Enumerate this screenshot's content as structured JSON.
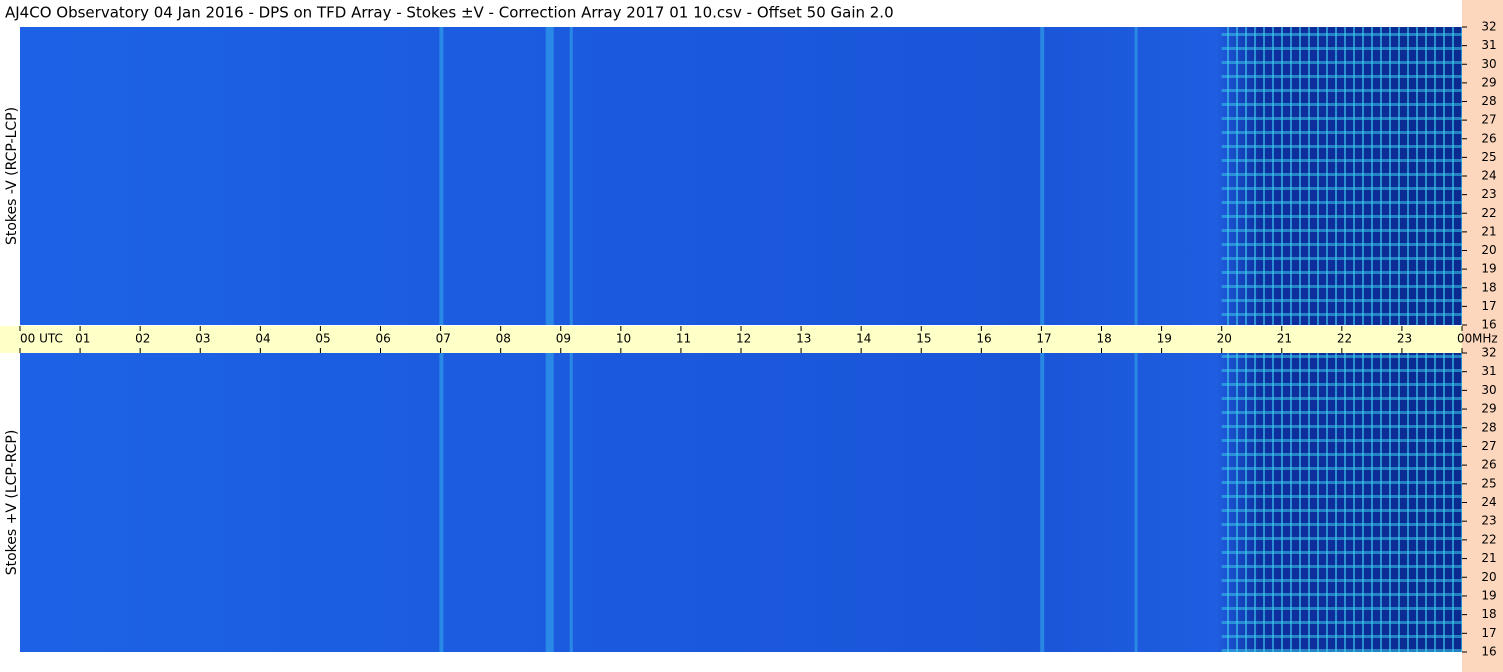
{
  "chart_data": [
    {
      "type": "spectrogram",
      "title": "AJ4CO Observatory  04 Jan 2016  -  DPS on TFD Array  -  Stokes ±V  -  Correction Array 2017 01 10.csv  -  Offset 50  Gain 2.0",
      "ylabel": "Stokes -V (RCP-LCP)",
      "xlim": [
        0,
        24
      ],
      "xticks": [
        {
          "value": 0,
          "label": "00 UTC"
        },
        {
          "value": 1,
          "label": "01"
        },
        {
          "value": 2,
          "label": "02"
        },
        {
          "value": 3,
          "label": "03"
        },
        {
          "value": 4,
          "label": "04"
        },
        {
          "value": 5,
          "label": "05"
        },
        {
          "value": 6,
          "label": "06"
        },
        {
          "value": 7,
          "label": "07"
        },
        {
          "value": 8,
          "label": "08"
        },
        {
          "value": 9,
          "label": "09"
        },
        {
          "value": 10,
          "label": "10"
        },
        {
          "value": 11,
          "label": "11"
        },
        {
          "value": 12,
          "label": "12"
        },
        {
          "value": 13,
          "label": "13"
        },
        {
          "value": 14,
          "label": "14"
        },
        {
          "value": 15,
          "label": "15"
        },
        {
          "value": 16,
          "label": "16"
        },
        {
          "value": 17,
          "label": "17"
        },
        {
          "value": 18,
          "label": "18"
        },
        {
          "value": 19,
          "label": "19"
        },
        {
          "value": 20,
          "label": "20"
        },
        {
          "value": 21,
          "label": "21"
        },
        {
          "value": 22,
          "label": "22"
        },
        {
          "value": 23,
          "label": "23"
        },
        {
          "value": 24,
          "label": "00"
        }
      ],
      "yunit": "MHz",
      "ylim": [
        16,
        32
      ],
      "yticks": [
        16,
        17,
        18,
        19,
        20,
        21,
        22,
        23,
        24,
        25,
        26,
        27,
        28,
        29,
        30,
        31,
        32
      ]
    },
    {
      "type": "spectrogram",
      "ylabel": "Stokes +V (LCP-RCP)",
      "ylim": [
        16,
        32
      ],
      "yticks": [
        16,
        17,
        18,
        19,
        20,
        21,
        22,
        23,
        24,
        25,
        26,
        27,
        28,
        29,
        30,
        31,
        32
      ]
    }
  ]
}
